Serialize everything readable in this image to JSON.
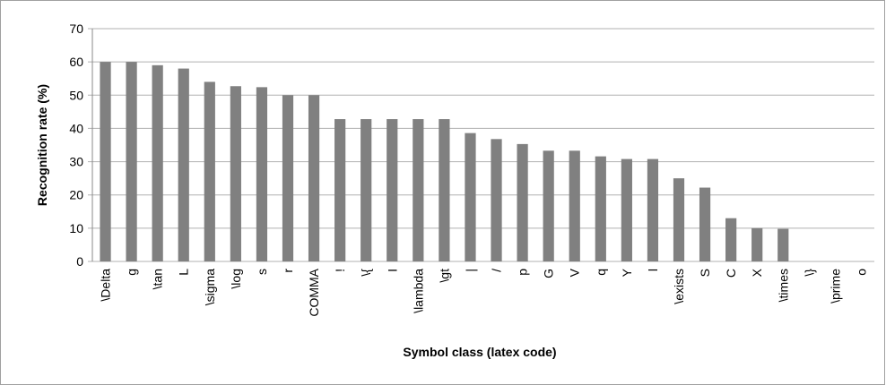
{
  "chart_data": {
    "type": "bar",
    "x_label": "Symbol class (latex code)",
    "y_label": "Recognition rate (%)",
    "categories": [
      "\\Delta",
      "g",
      "\\tan",
      "L",
      "\\sigma",
      "\\log",
      "s",
      "r",
      "COMMA",
      "!",
      "\\{",
      "I",
      "\\lambda",
      "\\gt",
      "|",
      "/",
      "p",
      "G",
      "V",
      "q",
      "Y",
      "l",
      "\\exists",
      "S",
      "C",
      "X",
      "\\times",
      "\\}",
      "\\prime",
      "o"
    ],
    "values": [
      60,
      60,
      59,
      58,
      54,
      52.7,
      52.4,
      50,
      50,
      42.8,
      42.8,
      42.8,
      42.8,
      42.8,
      38.6,
      36.8,
      35.3,
      33.3,
      33.3,
      31.6,
      30.8,
      30.8,
      25,
      22.2,
      13,
      10,
      9.8,
      0,
      0,
      0
    ],
    "color": "#808080",
    "ylim": [
      0,
      70
    ],
    "yticks": [
      0,
      10,
      20,
      30,
      40,
      50,
      60,
      70
    ],
    "grid": true
  }
}
